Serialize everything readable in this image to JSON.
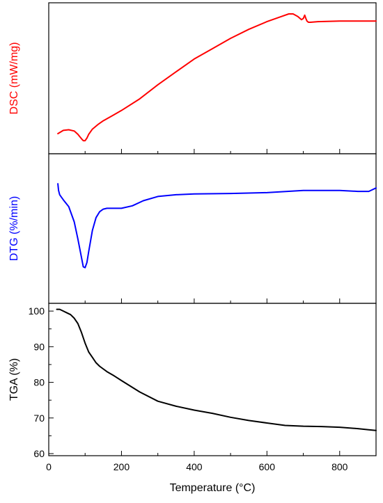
{
  "chart_data": {
    "type": "line",
    "xlabel": "Temperature (°C)",
    "xlim": [
      0,
      900
    ],
    "xticks": [
      0,
      200,
      400,
      600,
      800
    ],
    "panels": [
      {
        "name": "DSC",
        "ylabel": "DSC (mW/mg)",
        "color": "#ff0000",
        "yticks_shown": false,
        "ylim": [
          0,
          100
        ],
        "x": [
          25,
          40,
          55,
          70,
          80,
          90,
          95,
          100,
          105,
          110,
          120,
          135,
          150,
          175,
          200,
          250,
          300,
          350,
          400,
          450,
          500,
          550,
          600,
          640,
          660,
          672,
          685,
          695,
          700,
          704,
          707,
          710,
          714,
          720,
          740,
          800,
          850,
          900
        ],
        "values": [
          7,
          9.5,
          10,
          9,
          6.5,
          3,
          1.5,
          1.5,
          3.5,
          6.5,
          10.5,
          14,
          17,
          21,
          25,
          34,
          45,
          55,
          65,
          73,
          81,
          88,
          94,
          98,
          100,
          100,
          98,
          95.5,
          96.5,
          99,
          96.5,
          94.5,
          93.5,
          93.5,
          94,
          94.5,
          94.5,
          94.5
        ]
      },
      {
        "name": "DTG",
        "ylabel": "DTG (%/min)",
        "color": "#0000ff",
        "yticks_shown": false,
        "ylim": [
          -100,
          10
        ],
        "x": [
          25,
          27,
          30,
          40,
          55,
          70,
          80,
          90,
          95,
          100,
          105,
          110,
          120,
          130,
          140,
          150,
          160,
          180,
          200,
          230,
          260,
          300,
          350,
          400,
          500,
          600,
          700,
          800,
          850,
          880,
          900
        ],
        "values": [
          5,
          -3,
          -8,
          -14,
          -22,
          -40,
          -60,
          -82,
          -93,
          -94,
          -88,
          -75,
          -50,
          -35,
          -28,
          -25,
          -24,
          -24,
          -24,
          -21,
          -15,
          -10,
          -8,
          -7,
          -6.5,
          -5.5,
          -3,
          -3,
          -4,
          -4,
          0
        ]
      },
      {
        "name": "TGA",
        "ylabel": "TGA (%)",
        "color": "#000000",
        "yticks_shown": true,
        "ylim": [
          60,
          101
        ],
        "yticks": [
          60,
          70,
          80,
          90,
          100
        ],
        "x": [
          22,
          30,
          40,
          50,
          60,
          70,
          80,
          90,
          100,
          110,
          120,
          130,
          140,
          160,
          180,
          200,
          250,
          300,
          350,
          400,
          450,
          500,
          550,
          600,
          650,
          700,
          750,
          800,
          850,
          880,
          900
        ],
        "values": [
          100.5,
          100.5,
          100,
          99.5,
          99,
          98,
          96.5,
          94,
          91,
          88.5,
          87,
          85.5,
          84.5,
          83,
          81.8,
          80.5,
          77.3,
          74.7,
          73.3,
          72.2,
          71.3,
          70.2,
          69.3,
          68.6,
          67.9,
          67.7,
          67.6,
          67.4,
          67.0,
          66.7,
          66.5
        ]
      }
    ]
  }
}
